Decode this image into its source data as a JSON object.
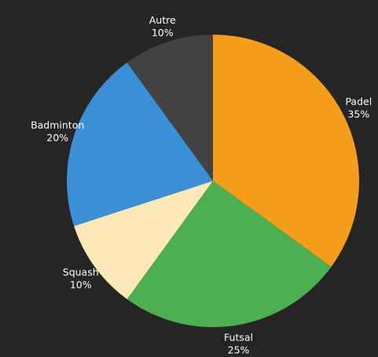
{
  "chart_data": {
    "type": "pie",
    "title": "",
    "slices": [
      {
        "name": "Padel",
        "value": 35,
        "label": "35%",
        "color": "#f59e1b"
      },
      {
        "name": "Futsal",
        "value": 25,
        "label": "25%",
        "color": "#4caf50"
      },
      {
        "name": "Squash",
        "value": 10,
        "label": "10%",
        "color": "#fde9b7"
      },
      {
        "name": "Badminton",
        "value": 20,
        "label": "20%",
        "color": "#3a8fd6"
      },
      {
        "name": "Autre",
        "value": 10,
        "label": "10%",
        "color": "#424242"
      }
    ],
    "start_angle_deg": 0,
    "direction": "clockwise",
    "labels_outside": true
  }
}
